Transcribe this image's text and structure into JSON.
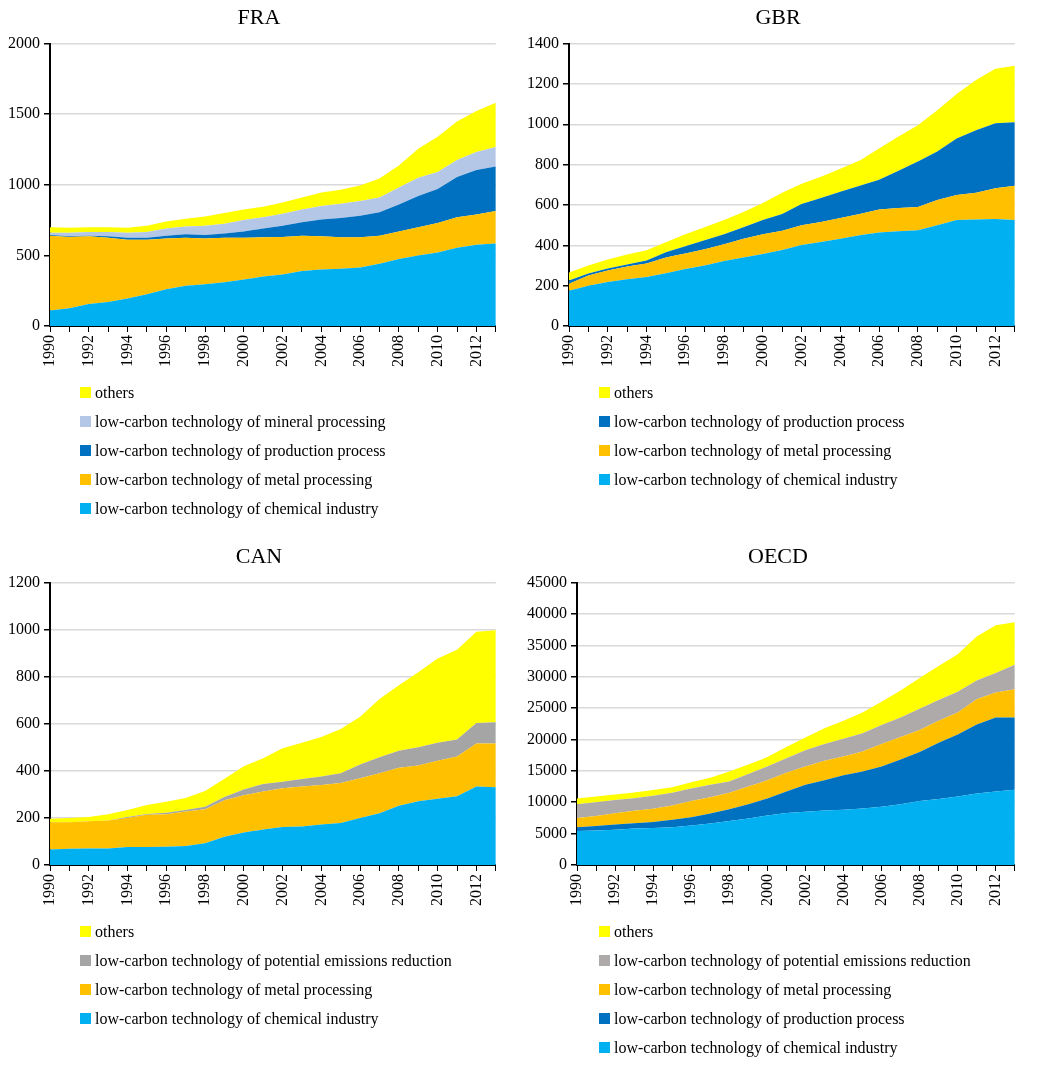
{
  "chart_data": [
    {
      "type": "area",
      "title": "FRA",
      "stacked": true,
      "grid": "y",
      "legend": "bottom",
      "categories": [
        "1990",
        null,
        "1992",
        null,
        "1994",
        null,
        "1996",
        null,
        "1998",
        null,
        "2000",
        null,
        "2002",
        null,
        "2004",
        null,
        "2006",
        null,
        "2008",
        null,
        "2010",
        null,
        "2012",
        null
      ],
      "ylim": [
        0,
        2000
      ],
      "yticks": [
        0,
        500,
        1000,
        1500,
        2000
      ],
      "series": [
        {
          "name": "low-carbon technology of chemical industry",
          "color": "#00b0f0",
          "values": [
            110,
            125,
            155,
            170,
            195,
            225,
            260,
            285,
            295,
            310,
            330,
            350,
            365,
            390,
            400,
            405,
            415,
            440,
            475,
            500,
            520,
            555,
            575,
            585
          ]
        },
        {
          "name": "low-carbon technology of metal processing",
          "color": "#ffc000",
          "values": [
            530,
            505,
            480,
            455,
            415,
            385,
            360,
            340,
            325,
            315,
            295,
            278,
            265,
            250,
            235,
            223,
            213,
            200,
            195,
            200,
            210,
            215,
            215,
            230
          ]
        },
        {
          "name": "low-carbon technology of production process",
          "color": "#0070c0",
          "values": [
            5,
            5,
            5,
            10,
            15,
            15,
            20,
            25,
            25,
            30,
            45,
            62,
            80,
            95,
            120,
            137,
            152,
            165,
            190,
            220,
            240,
            285,
            315,
            315
          ]
        },
        {
          "name": "low-carbon technology of mineral processing",
          "color": "#b4c7e7",
          "values": [
            15,
            25,
            25,
            30,
            35,
            40,
            50,
            55,
            65,
            70,
            80,
            80,
            85,
            90,
            95,
            100,
            105,
            105,
            120,
            130,
            120,
            120,
            127,
            138
          ]
        },
        {
          "name": "others",
          "color": "#ffff00",
          "values": [
            40,
            35,
            35,
            35,
            35,
            45,
            50,
            55,
            65,
            75,
            75,
            75,
            80,
            85,
            95,
            100,
            110,
            135,
            157,
            205,
            250,
            273,
            290,
            313
          ]
        }
      ]
    },
    {
      "type": "area",
      "title": "GBR",
      "stacked": true,
      "grid": "y",
      "legend": "bottom",
      "categories": [
        "1990",
        null,
        "1992",
        null,
        "1994",
        null,
        "1996",
        null,
        "1998",
        null,
        "2000",
        null,
        "2002",
        null,
        "2004",
        null,
        "2006",
        null,
        "2008",
        null,
        "2010",
        null,
        "2012",
        null
      ],
      "ylim": [
        0,
        1400
      ],
      "yticks": [
        0,
        200,
        400,
        600,
        800,
        1000,
        1200,
        1400
      ],
      "series": [
        {
          "name": "low-carbon technology of chemical industry",
          "color": "#00b0f0",
          "values": [
            175,
            200,
            218,
            232,
            243,
            262,
            283,
            300,
            322,
            340,
            357,
            377,
            402,
            417,
            433,
            450,
            463,
            470,
            475,
            500,
            525,
            528,
            530,
            525
          ]
        },
        {
          "name": "low-carbon technology of metal processing",
          "color": "#ffc000",
          "values": [
            35,
            50,
            57,
            63,
            67,
            78,
            77,
            80,
            83,
            92,
            98,
            95,
            98,
            98,
            102,
            105,
            115,
            115,
            115,
            125,
            125,
            132,
            153,
            170
          ]
        },
        {
          "name": "low-carbon technology of production process",
          "color": "#0070c0",
          "values": [
            15,
            10,
            10,
            10,
            15,
            25,
            35,
            45,
            50,
            58,
            70,
            83,
            105,
            120,
            130,
            140,
            147,
            185,
            225,
            240,
            280,
            310,
            322,
            315
          ]
        },
        {
          "name": "others",
          "color": "#ffff00",
          "values": [
            40,
            40,
            45,
            50,
            50,
            50,
            60,
            65,
            70,
            75,
            85,
            105,
            100,
            105,
            115,
            125,
            155,
            170,
            180,
            205,
            220,
            250,
            270,
            280
          ]
        }
      ]
    },
    {
      "type": "area",
      "title": "CAN",
      "stacked": true,
      "grid": "y",
      "legend": "bottom",
      "categories": [
        "1990",
        null,
        "1992",
        null,
        "1994",
        null,
        "1996",
        null,
        "1998",
        null,
        "2000",
        null,
        "2002",
        null,
        "2004",
        null,
        "2006",
        null,
        "2008",
        null,
        "2010",
        null,
        "2012",
        null
      ],
      "ylim": [
        0,
        1200
      ],
      "yticks": [
        0,
        200,
        400,
        600,
        800,
        1000,
        1200
      ],
      "series": [
        {
          "name": "low-carbon technology of chemical industry",
          "color": "#00b0f0",
          "values": [
            66,
            69,
            70,
            70,
            76,
            77,
            78,
            81,
            92,
            120,
            138,
            151,
            161,
            164,
            172,
            179,
            200,
            220,
            252,
            271,
            282,
            292,
            334,
            330
          ]
        },
        {
          "name": "low-carbon technology of metal processing",
          "color": "#ffc000",
          "values": [
            116,
            113,
            116,
            119,
            124,
            136,
            138,
            146,
            145,
            155,
            158,
            161,
            165,
            170,
            168,
            169,
            169,
            170,
            161,
            152,
            161,
            169,
            182,
            186
          ]
        },
        {
          "name": "low-carbon technology of potential emissions reduction",
          "color": "#a5a5a5",
          "values": [
            0,
            0,
            0,
            0,
            4,
            4,
            6,
            7,
            11,
            14,
            25,
            32,
            28,
            31,
            36,
            42,
            58,
            68,
            73,
            77,
            76,
            72,
            87,
            91
          ]
        },
        {
          "name": "others",
          "color": "#ffff00",
          "values": [
            15,
            18,
            18,
            27,
            30,
            38,
            47,
            51,
            66,
            78,
            99,
            110,
            142,
            154,
            168,
            188,
            203,
            247,
            278,
            319,
            358,
            382,
            388,
            391
          ]
        }
      ]
    },
    {
      "type": "area",
      "title": "OECD",
      "stacked": true,
      "grid": "y",
      "legend": "bottom",
      "categories": [
        "1990",
        null,
        "1992",
        null,
        "1994",
        null,
        "1996",
        null,
        "1998",
        null,
        "2000",
        null,
        "2002",
        null,
        "2004",
        null,
        "2006",
        null,
        "2008",
        null,
        "2010",
        null,
        "2012",
        null
      ],
      "ylim": [
        0,
        45000
      ],
      "yticks": [
        0,
        5000,
        10000,
        15000,
        20000,
        25000,
        30000,
        35000,
        40000,
        45000
      ],
      "series": [
        {
          "name": "low-carbon technology of chemical industry",
          "color": "#00b0f0",
          "values": [
            5400,
            5500,
            5600,
            5800,
            5900,
            6000,
            6300,
            6600,
            7000,
            7400,
            7900,
            8300,
            8500,
            8700,
            8800,
            9000,
            9300,
            9700,
            10200,
            10500,
            10900,
            11400,
            11700,
            12000
          ]
        },
        {
          "name": "low-carbon technology of production process",
          "color": "#0070c0",
          "values": [
            600,
            700,
            850,
            850,
            950,
            1200,
            1300,
            1600,
            1900,
            2300,
            2700,
            3400,
            4300,
            4800,
            5500,
            5900,
            6400,
            7100,
            7800,
            9000,
            9900,
            11000,
            11800,
            11500
          ]
        },
        {
          "name": "low-carbon technology of metal processing",
          "color": "#ffc000",
          "values": [
            1500,
            1600,
            1800,
            2000,
            2100,
            2300,
            2600,
            2600,
            2600,
            2800,
            2900,
            3000,
            2900,
            3100,
            3000,
            3200,
            3600,
            3600,
            3500,
            3500,
            3500,
            4000,
            4000,
            4500
          ]
        },
        {
          "name": "low-carbon technology of potential emissions reduction",
          "color": "#aeaaaa",
          "values": [
            2200,
            2200,
            2100,
            2000,
            2100,
            2000,
            2000,
            2000,
            1800,
            2000,
            2200,
            2300,
            2600,
            2700,
            2800,
            2900,
            3000,
            3100,
            3400,
            3300,
            3300,
            3000,
            3100,
            3900
          ]
        },
        {
          "name": "others",
          "color": "#ffff00",
          "values": [
            900,
            900,
            900,
            900,
            900,
            900,
            1000,
            1100,
            1600,
            1500,
            1500,
            1800,
            2000,
            2500,
            2900,
            3300,
            3700,
            4300,
            4900,
            5400,
            6000,
            7000,
            7600,
            6800
          ]
        }
      ]
    }
  ]
}
